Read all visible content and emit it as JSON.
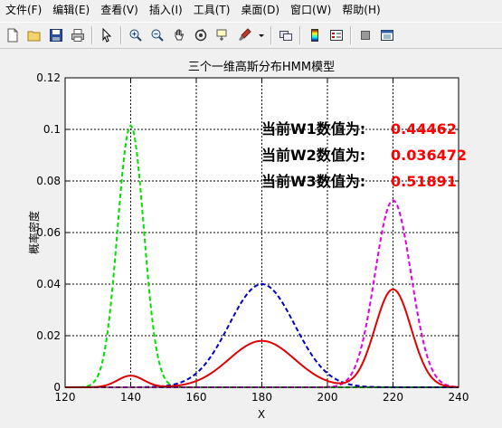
{
  "menu": {
    "items": [
      {
        "label": "文件(F)"
      },
      {
        "label": "编辑(E)"
      },
      {
        "label": "查看(V)"
      },
      {
        "label": "插入(I)"
      },
      {
        "label": "工具(T)"
      },
      {
        "label": "桌面(D)"
      },
      {
        "label": "窗口(W)"
      },
      {
        "label": "帮助(H)"
      }
    ]
  },
  "toolbar": {
    "icons": [
      "new-file-icon",
      "open-folder-icon",
      "save-icon",
      "print-icon",
      "pointer-icon",
      "zoom-in-icon",
      "zoom-out-icon",
      "pan-hand-icon",
      "rotate-3d-icon",
      "data-cursor-icon",
      "brush-icon",
      "link-icon",
      "colorbar-icon",
      "legend-icon",
      "hide-plot-tools-icon",
      "show-plot-tools-icon"
    ]
  },
  "chart_data": {
    "type": "line",
    "title": "三个一维高斯分布HMM模型",
    "xlabel": "X",
    "ylabel": "概率密度",
    "xlim": [
      120,
      240
    ],
    "ylim": [
      0,
      0.12
    ],
    "xticks": [
      "120",
      "140",
      "160",
      "180",
      "200",
      "220",
      "240"
    ],
    "yticks": [
      "0",
      "0.02",
      "0.04",
      "0.06",
      "0.08",
      "0.1",
      "0.12"
    ],
    "grid": true,
    "series": [
      {
        "color": "#00e000",
        "style": "dashed",
        "component": {
          "mean": 140,
          "std": 4,
          "peak": 0.1015
        }
      },
      {
        "color": "#0000c0",
        "style": "dashed",
        "component": {
          "mean": 180,
          "std": 10,
          "peak": 0.04
        }
      },
      {
        "color": "#e000e0",
        "style": "dashed",
        "component": {
          "mean": 220,
          "std": 5.5,
          "peak": 0.0725
        }
      },
      {
        "color": "#e00000",
        "style": "solid",
        "mixture": [
          {
            "mean": 140,
            "std": 4,
            "peak": 0.0045
          },
          {
            "mean": 180,
            "std": 10,
            "peak": 0.018
          },
          {
            "mean": 220,
            "std": 5.5,
            "peak": 0.038
          }
        ]
      }
    ],
    "annotations": [
      {
        "label": "当前W1数值为:",
        "value": "0.44462"
      },
      {
        "label": "当前W2数值为:",
        "value": "0.036472"
      },
      {
        "label": "当前W3数值为:",
        "value": "0.51891"
      }
    ]
  }
}
